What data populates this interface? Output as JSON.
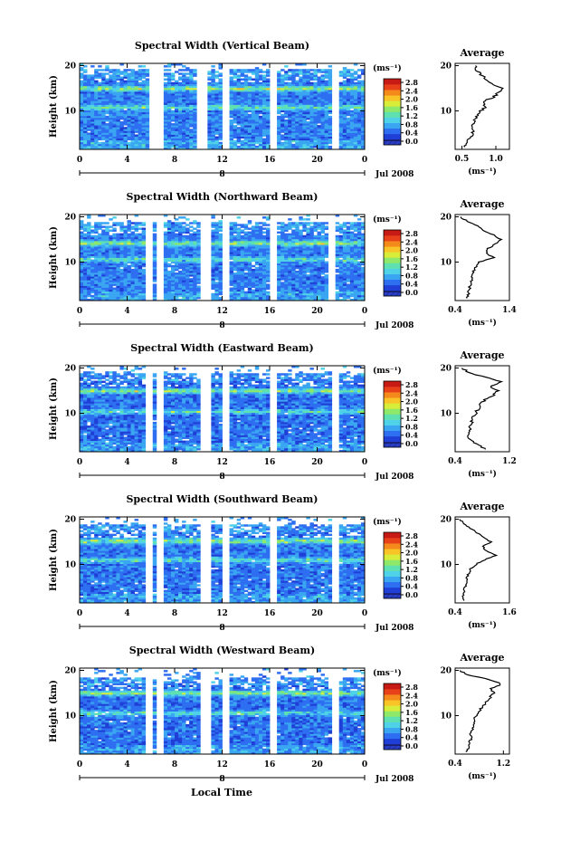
{
  "figure": {
    "x_axis_title": "Local Time"
  },
  "colorscale": {
    "unit_label": "(ms⁻¹)",
    "ticks": [
      "0.0",
      "0.4",
      "0.8",
      "1.2",
      "1.6",
      "2.0",
      "2.4",
      "2.8"
    ],
    "colors": [
      "#1a1f6e",
      "#1f3fd6",
      "#2e6ef0",
      "#3aa6f2",
      "#4fd2e8",
      "#5fe0b0",
      "#8ee86a",
      "#d8ec3a",
      "#f8c428",
      "#f48a1c",
      "#e84018",
      "#c81a14"
    ]
  },
  "chart_data": [
    {
      "type": "heatmap",
      "title": "Spectral Width (Vertical Beam)",
      "ylabel": "Height (km)",
      "yticks": [
        "10",
        "20"
      ],
      "ylim": [
        1.5,
        20.5
      ],
      "xlim": [
        0,
        24
      ],
      "xticks": [
        "0",
        "4",
        "8",
        "12",
        "16",
        "20",
        "0"
      ],
      "date_label": "Jul 2008",
      "day_marker": "8",
      "data_gaps": [
        [
          5.9,
          6.3
        ],
        [
          6.6,
          6.9
        ],
        [
          10.1,
          10.7
        ],
        [
          12.1,
          12.4
        ],
        [
          16.3,
          16.6
        ],
        [
          21.4,
          21.7
        ]
      ],
      "color_range": [
        0.0,
        2.8
      ],
      "typical_level": 0.65,
      "enhanced_layers_km": [
        14.8,
        10.6
      ],
      "echo_top_km": 19.0,
      "profile": {
        "title": "Average",
        "xlabel": "(ms⁻¹)",
        "xticks": [
          "0.5",
          "1.0"
        ],
        "xlim": [
          0.4,
          1.2
        ],
        "yticks": [
          "10",
          "20"
        ],
        "heights_km": [
          2,
          3,
          4,
          5,
          6,
          7,
          8,
          9,
          10,
          11,
          12,
          13,
          14,
          15,
          16,
          17,
          18,
          19,
          20
        ],
        "values": [
          0.55,
          0.58,
          0.62,
          0.66,
          0.66,
          0.67,
          0.69,
          0.72,
          0.78,
          0.85,
          0.8,
          0.96,
          1.04,
          1.08,
          0.96,
          0.86,
          0.78,
          0.72,
          0.7
        ]
      }
    },
    {
      "type": "heatmap",
      "title": "Spectral Width (Northward Beam)",
      "ylabel": "Height (km)",
      "yticks": [
        "10",
        "20"
      ],
      "ylim": [
        1.5,
        20.5
      ],
      "xlim": [
        0,
        24
      ],
      "xticks": [
        "0",
        "4",
        "8",
        "12",
        "16",
        "20",
        "0"
      ],
      "date_label": "Jul 2008",
      "day_marker": "8",
      "data_gaps": [
        [
          5.6,
          6.1
        ],
        [
          6.6,
          6.9
        ],
        [
          10.4,
          10.8
        ],
        [
          12.1,
          12.4
        ],
        [
          16.0,
          16.4
        ],
        [
          21.2,
          21.5
        ]
      ],
      "color_range": [
        0.0,
        2.8
      ],
      "typical_level": 0.65,
      "enhanced_layers_km": [
        14.0,
        10.4
      ],
      "echo_top_km": 18.6,
      "profile": {
        "title": "Average",
        "xlabel": "(ms⁻¹)",
        "xticks": [
          "0.4",
          "1.4"
        ],
        "xlim": [
          0.4,
          1.4
        ],
        "yticks": [
          "10",
          "20"
        ],
        "heights_km": [
          2,
          3,
          4,
          5,
          6,
          7,
          8,
          9,
          10,
          11,
          12,
          13,
          14,
          15,
          16,
          17,
          18,
          19,
          20
        ],
        "values": [
          0.62,
          0.64,
          0.66,
          0.68,
          0.7,
          0.72,
          0.74,
          0.78,
          0.84,
          1.1,
          0.96,
          1.0,
          1.14,
          1.24,
          1.1,
          0.92,
          0.82,
          0.62,
          0.5
        ]
      }
    },
    {
      "type": "heatmap",
      "title": "Spectral Width (Eastward Beam)",
      "ylabel": "Height (km)",
      "yticks": [
        "10",
        "20"
      ],
      "ylim": [
        1.5,
        20.5
      ],
      "xlim": [
        0,
        24
      ],
      "xticks": [
        "0",
        "4",
        "8",
        "12",
        "16",
        "20",
        "0"
      ],
      "date_label": "Jul 2008",
      "day_marker": "8",
      "data_gaps": [
        [
          5.6,
          6.0
        ],
        [
          6.6,
          6.9
        ],
        [
          10.4,
          10.8
        ],
        [
          12.2,
          12.5
        ],
        [
          16.1,
          16.5
        ],
        [
          21.4,
          21.7
        ]
      ],
      "color_range": [
        0.0,
        2.8
      ],
      "typical_level": 0.6,
      "enhanced_layers_km": [
        14.8,
        10.2
      ],
      "echo_top_km": 18.8,
      "profile": {
        "title": "Average",
        "xlabel": "(ms⁻¹)",
        "xticks": [
          "0.4",
          "1.2"
        ],
        "xlim": [
          0.4,
          1.2
        ],
        "yticks": [
          "10",
          "20"
        ],
        "heights_km": [
          2,
          3,
          4,
          5,
          6,
          7,
          8,
          9,
          10,
          11,
          12,
          13,
          14,
          15,
          16,
          17,
          18,
          19,
          20
        ],
        "values": [
          0.86,
          0.74,
          0.62,
          0.58,
          0.6,
          0.62,
          0.64,
          0.66,
          0.7,
          0.74,
          0.78,
          0.84,
          0.96,
          1.02,
          0.92,
          1.08,
          0.84,
          0.6,
          0.5
        ]
      }
    },
    {
      "type": "heatmap",
      "title": "Spectral Width (Southward Beam)",
      "ylabel": "Height (km)",
      "yticks": [
        "10",
        "20"
      ],
      "ylim": [
        1.5,
        20.5
      ],
      "xlim": [
        0,
        24
      ],
      "xticks": [
        "0",
        "4",
        "8",
        "12",
        "16",
        "20",
        "0"
      ],
      "date_label": "Jul 2008",
      "day_marker": "8",
      "data_gaps": [
        [
          5.7,
          6.0
        ],
        [
          6.6,
          6.9
        ],
        [
          10.3,
          10.8
        ],
        [
          12.1,
          12.4
        ],
        [
          16.2,
          16.5
        ],
        [
          21.4,
          21.7
        ]
      ],
      "color_range": [
        0.0,
        2.8
      ],
      "typical_level": 0.62,
      "enhanced_layers_km": [
        15.0,
        10.8
      ],
      "echo_top_km": 18.8,
      "profile": {
        "title": "Average",
        "xlabel": "(ms⁻¹)",
        "xticks": [
          "0.4",
          "1.6"
        ],
        "xlim": [
          0.4,
          1.6
        ],
        "yticks": [
          "10",
          "20"
        ],
        "heights_km": [
          2,
          3,
          4,
          5,
          6,
          7,
          8,
          9,
          10,
          11,
          12,
          13,
          14,
          15,
          16,
          17,
          18,
          19,
          20
        ],
        "values": [
          0.6,
          0.58,
          0.6,
          0.62,
          0.64,
          0.66,
          0.7,
          0.74,
          0.86,
          1.04,
          1.3,
          1.1,
          1.0,
          1.2,
          1.02,
          0.88,
          0.74,
          0.6,
          0.5
        ]
      }
    },
    {
      "type": "heatmap",
      "title": "Spectral Width (Westward Beam)",
      "ylabel": "Height (km)",
      "yticks": [
        "10",
        "20"
      ],
      "ylim": [
        1.5,
        20.5
      ],
      "xlim": [
        0,
        24
      ],
      "xticks": [
        "0",
        "4",
        "8",
        "12",
        "16",
        "20",
        "0"
      ],
      "date_label": "Jul 2008",
      "day_marker": "8",
      "data_gaps": [
        [
          5.7,
          6.0
        ],
        [
          6.6,
          6.9
        ],
        [
          10.4,
          10.8
        ],
        [
          12.1,
          12.4
        ],
        [
          16.2,
          16.5
        ],
        [
          21.4,
          21.7
        ]
      ],
      "color_range": [
        0.0,
        2.8
      ],
      "typical_level": 0.6,
      "enhanced_layers_km": [
        14.8,
        10.4
      ],
      "echo_top_km": 18.4,
      "profile": {
        "title": "Average",
        "xlabel": "(ms⁻¹)",
        "xticks": [
          "0.4",
          "1.2"
        ],
        "xlim": [
          0.4,
          1.3
        ],
        "yticks": [
          "10",
          "20"
        ],
        "heights_km": [
          2,
          3,
          4,
          5,
          6,
          7,
          8,
          9,
          10,
          11,
          12,
          13,
          14,
          15,
          16,
          17,
          18,
          19,
          20
        ],
        "values": [
          0.6,
          0.62,
          0.64,
          0.66,
          0.66,
          0.68,
          0.7,
          0.72,
          0.74,
          0.8,
          0.86,
          0.92,
          0.98,
          1.04,
          1.0,
          1.16,
          0.96,
          0.6,
          0.48
        ]
      }
    }
  ]
}
